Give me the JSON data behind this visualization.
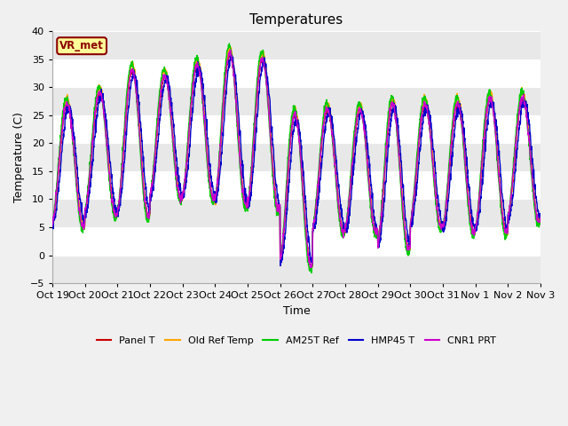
{
  "title": "Temperatures",
  "xlabel": "Time",
  "ylabel": "Temperature (C)",
  "ylim": [
    -5,
    40
  ],
  "yticks": [
    -5,
    0,
    5,
    10,
    15,
    20,
    25,
    30,
    35,
    40
  ],
  "fig_bg_color": "#f0f0f0",
  "plot_bg_color": "#ffffff",
  "annotation_text": "VR_met",
  "annotation_bg": "#ffff99",
  "annotation_border": "#8b0000",
  "series_order": [
    "Panel T",
    "Old Ref Temp",
    "AM25T Ref",
    "HMP45 T",
    "CNR1 PRT"
  ],
  "series_colors": [
    "#cc0000",
    "#ffa500",
    "#00cc00",
    "#0000cc",
    "#cc00cc"
  ],
  "xtick_labels": [
    "Oct 19",
    "Oct 20",
    "Oct 21",
    "Oct 22",
    "Oct 23",
    "Oct 24",
    "Oct 25",
    "Oct 26",
    "Oct 27",
    "Oct 28",
    "Oct 29",
    "Oct 30",
    "Oct 31",
    "Nov 1",
    "Nov 2",
    "Nov 3"
  ],
  "n_days": 15,
  "pts_per_day": 144,
  "day_min_temps_base": [
    5,
    7,
    7,
    10,
    10,
    9,
    8,
    -2,
    4,
    4,
    1,
    5,
    4,
    4,
    6
  ],
  "day_max_temps_base": [
    27,
    29,
    33,
    32,
    34,
    36,
    35,
    25,
    26,
    26,
    27,
    27,
    27,
    28,
    28
  ],
  "phase_shifts": [
    0.0,
    0.0,
    0.15,
    -0.3,
    0.05
  ],
  "amp_scales": [
    1.0,
    1.05,
    1.08,
    0.95,
    1.0
  ],
  "mid_offsets": [
    0.0,
    0.5,
    0.3,
    0.0,
    0.1
  ],
  "noise_scales": [
    0.3,
    0.3,
    0.3,
    0.5,
    0.3
  ],
  "seeds": [
    10,
    20,
    30,
    40,
    50
  ]
}
